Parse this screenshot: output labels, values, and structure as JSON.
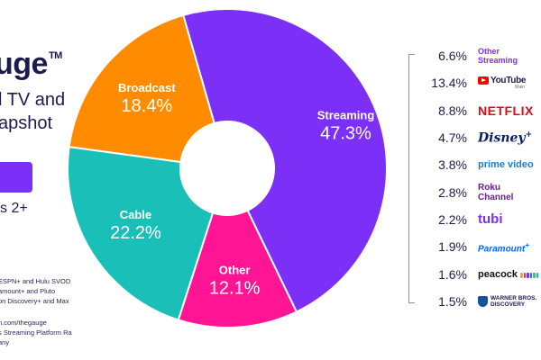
{
  "brand": {
    "title": "uge",
    "trademark": "TM"
  },
  "subtitle": {
    "line1": "l TV and",
    "line2": "apshot"
  },
  "accent_color": "#7b2ff7",
  "age_label": "s 2+",
  "notes": {
    "line1": "ESPN+ and Hulu SVOD",
    "line2": "amount+ and Pluto",
    "line3": "on Discovery+ and Max"
  },
  "sources": {
    "line1": "n.com/thegauge",
    "line2": "s Streaming Platform Ratings",
    "line3": "any"
  },
  "chart_data": {
    "type": "pie",
    "title": "",
    "slices": [
      {
        "label": "Streaming",
        "value": 47.3,
        "display": "47.3%",
        "color": "#7b2ff7"
      },
      {
        "label": "Other",
        "value": 12.1,
        "display": "12.1%",
        "color": "#ff1493"
      },
      {
        "label": "Cable",
        "value": 22.2,
        "display": "22.2%",
        "color": "#1abfb8"
      },
      {
        "label": "Broadcast",
        "value": 18.4,
        "display": "18.4%",
        "color": "#ff8c00"
      }
    ],
    "streaming_breakdown": [
      {
        "platform": "Other Streaming",
        "value": 6.6,
        "display": "6.6%"
      },
      {
        "platform": "YouTube",
        "value": 13.4,
        "display": "13.4%"
      },
      {
        "platform": "Netflix",
        "value": 8.8,
        "display": "8.8%"
      },
      {
        "platform": "Disney",
        "value": 4.7,
        "display": "4.7%"
      },
      {
        "platform": "prime video",
        "value": 3.8,
        "display": "3.8%"
      },
      {
        "platform": "Roku Channel",
        "value": 2.8,
        "display": "2.8%"
      },
      {
        "platform": "tubi",
        "value": 2.2,
        "display": "2.2%"
      },
      {
        "platform": "Paramount+",
        "value": 1.9,
        "display": "1.9%"
      },
      {
        "platform": "peacock",
        "value": 1.6,
        "display": "1.6%"
      },
      {
        "platform": "Warner Bros. Discovery",
        "value": 1.5,
        "display": "1.5%"
      }
    ]
  },
  "logos": {
    "other_line1": "Other",
    "other_line2": "Streaming",
    "youtube_text": "YouTube",
    "youtube_sub": "Main",
    "netflix": "NETFLIX",
    "disney": "Disney",
    "disney_plus": "+",
    "prime": "prime video",
    "roku_line1": "Roku",
    "roku_line2": "Channel",
    "tubi": "tubi",
    "paramount": "Paramount",
    "paramount_plus": "+",
    "peacock": "peacock",
    "wbd_line1": "WARNER BROS.",
    "wbd_line2": "DISCOVERY",
    "peacock_colors": [
      "#f5a623",
      "#e63946",
      "#7b2ff7",
      "#1a73e8",
      "#2ecc71",
      "#00bcd4"
    ]
  }
}
